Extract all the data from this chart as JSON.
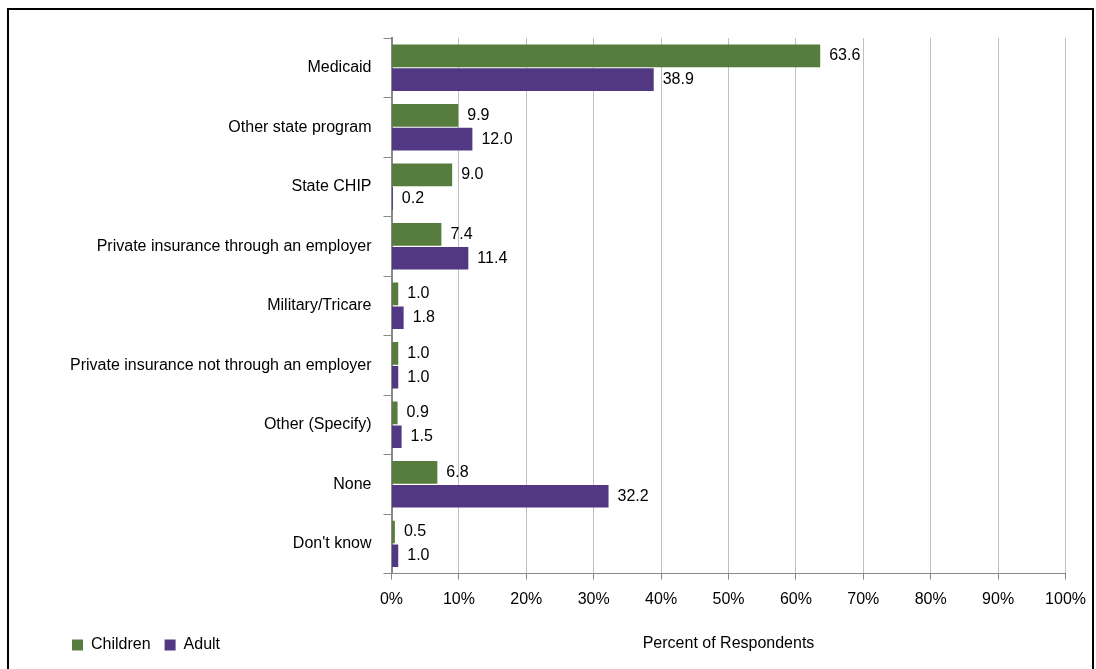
{
  "chart_data": {
    "type": "bar",
    "orientation": "horizontal",
    "xlabel": "Percent of Respondents",
    "categories": [
      "Medicaid",
      "Other state program",
      "State CHIP",
      "Private insurance through an employer",
      "Military/Tricare",
      "Private insurance not through an employer",
      "Other (Specify)",
      "None",
      "Don't know"
    ],
    "series": [
      {
        "name": "Children",
        "color": "#567d3e",
        "values": [
          63.6,
          9.9,
          9.0,
          7.4,
          1.0,
          1.0,
          0.9,
          6.8,
          0.5
        ],
        "value_labels": [
          "63.6",
          "9.9",
          "9.0",
          "7.4",
          "1.0",
          "1.0",
          "0.9",
          "6.8",
          "0.5"
        ]
      },
      {
        "name": "Adult",
        "color": "#523883",
        "values": [
          38.9,
          12.0,
          0.2,
          11.4,
          1.8,
          1.0,
          1.5,
          32.2,
          1.0
        ],
        "value_labels": [
          "38.9",
          "12.0",
          "0.2",
          "11.4",
          "1.8",
          "1.0",
          "1.5",
          "32.2",
          "1.0"
        ]
      }
    ],
    "xlim": [
      0,
      100
    ],
    "xticks": [
      {
        "value": 0,
        "label": "0%"
      },
      {
        "value": 10,
        "label": "10%"
      },
      {
        "value": 20,
        "label": "20%"
      },
      {
        "value": 30,
        "label": "30%"
      },
      {
        "value": 40,
        "label": "40%"
      },
      {
        "value": 50,
        "label": "50%"
      },
      {
        "value": 60,
        "label": "60%"
      },
      {
        "value": 70,
        "label": "70%"
      },
      {
        "value": 80,
        "label": "80%"
      },
      {
        "value": 90,
        "label": "90%"
      },
      {
        "value": 100,
        "label": "100%"
      }
    ],
    "grid": "x",
    "legend": "bottom left"
  }
}
